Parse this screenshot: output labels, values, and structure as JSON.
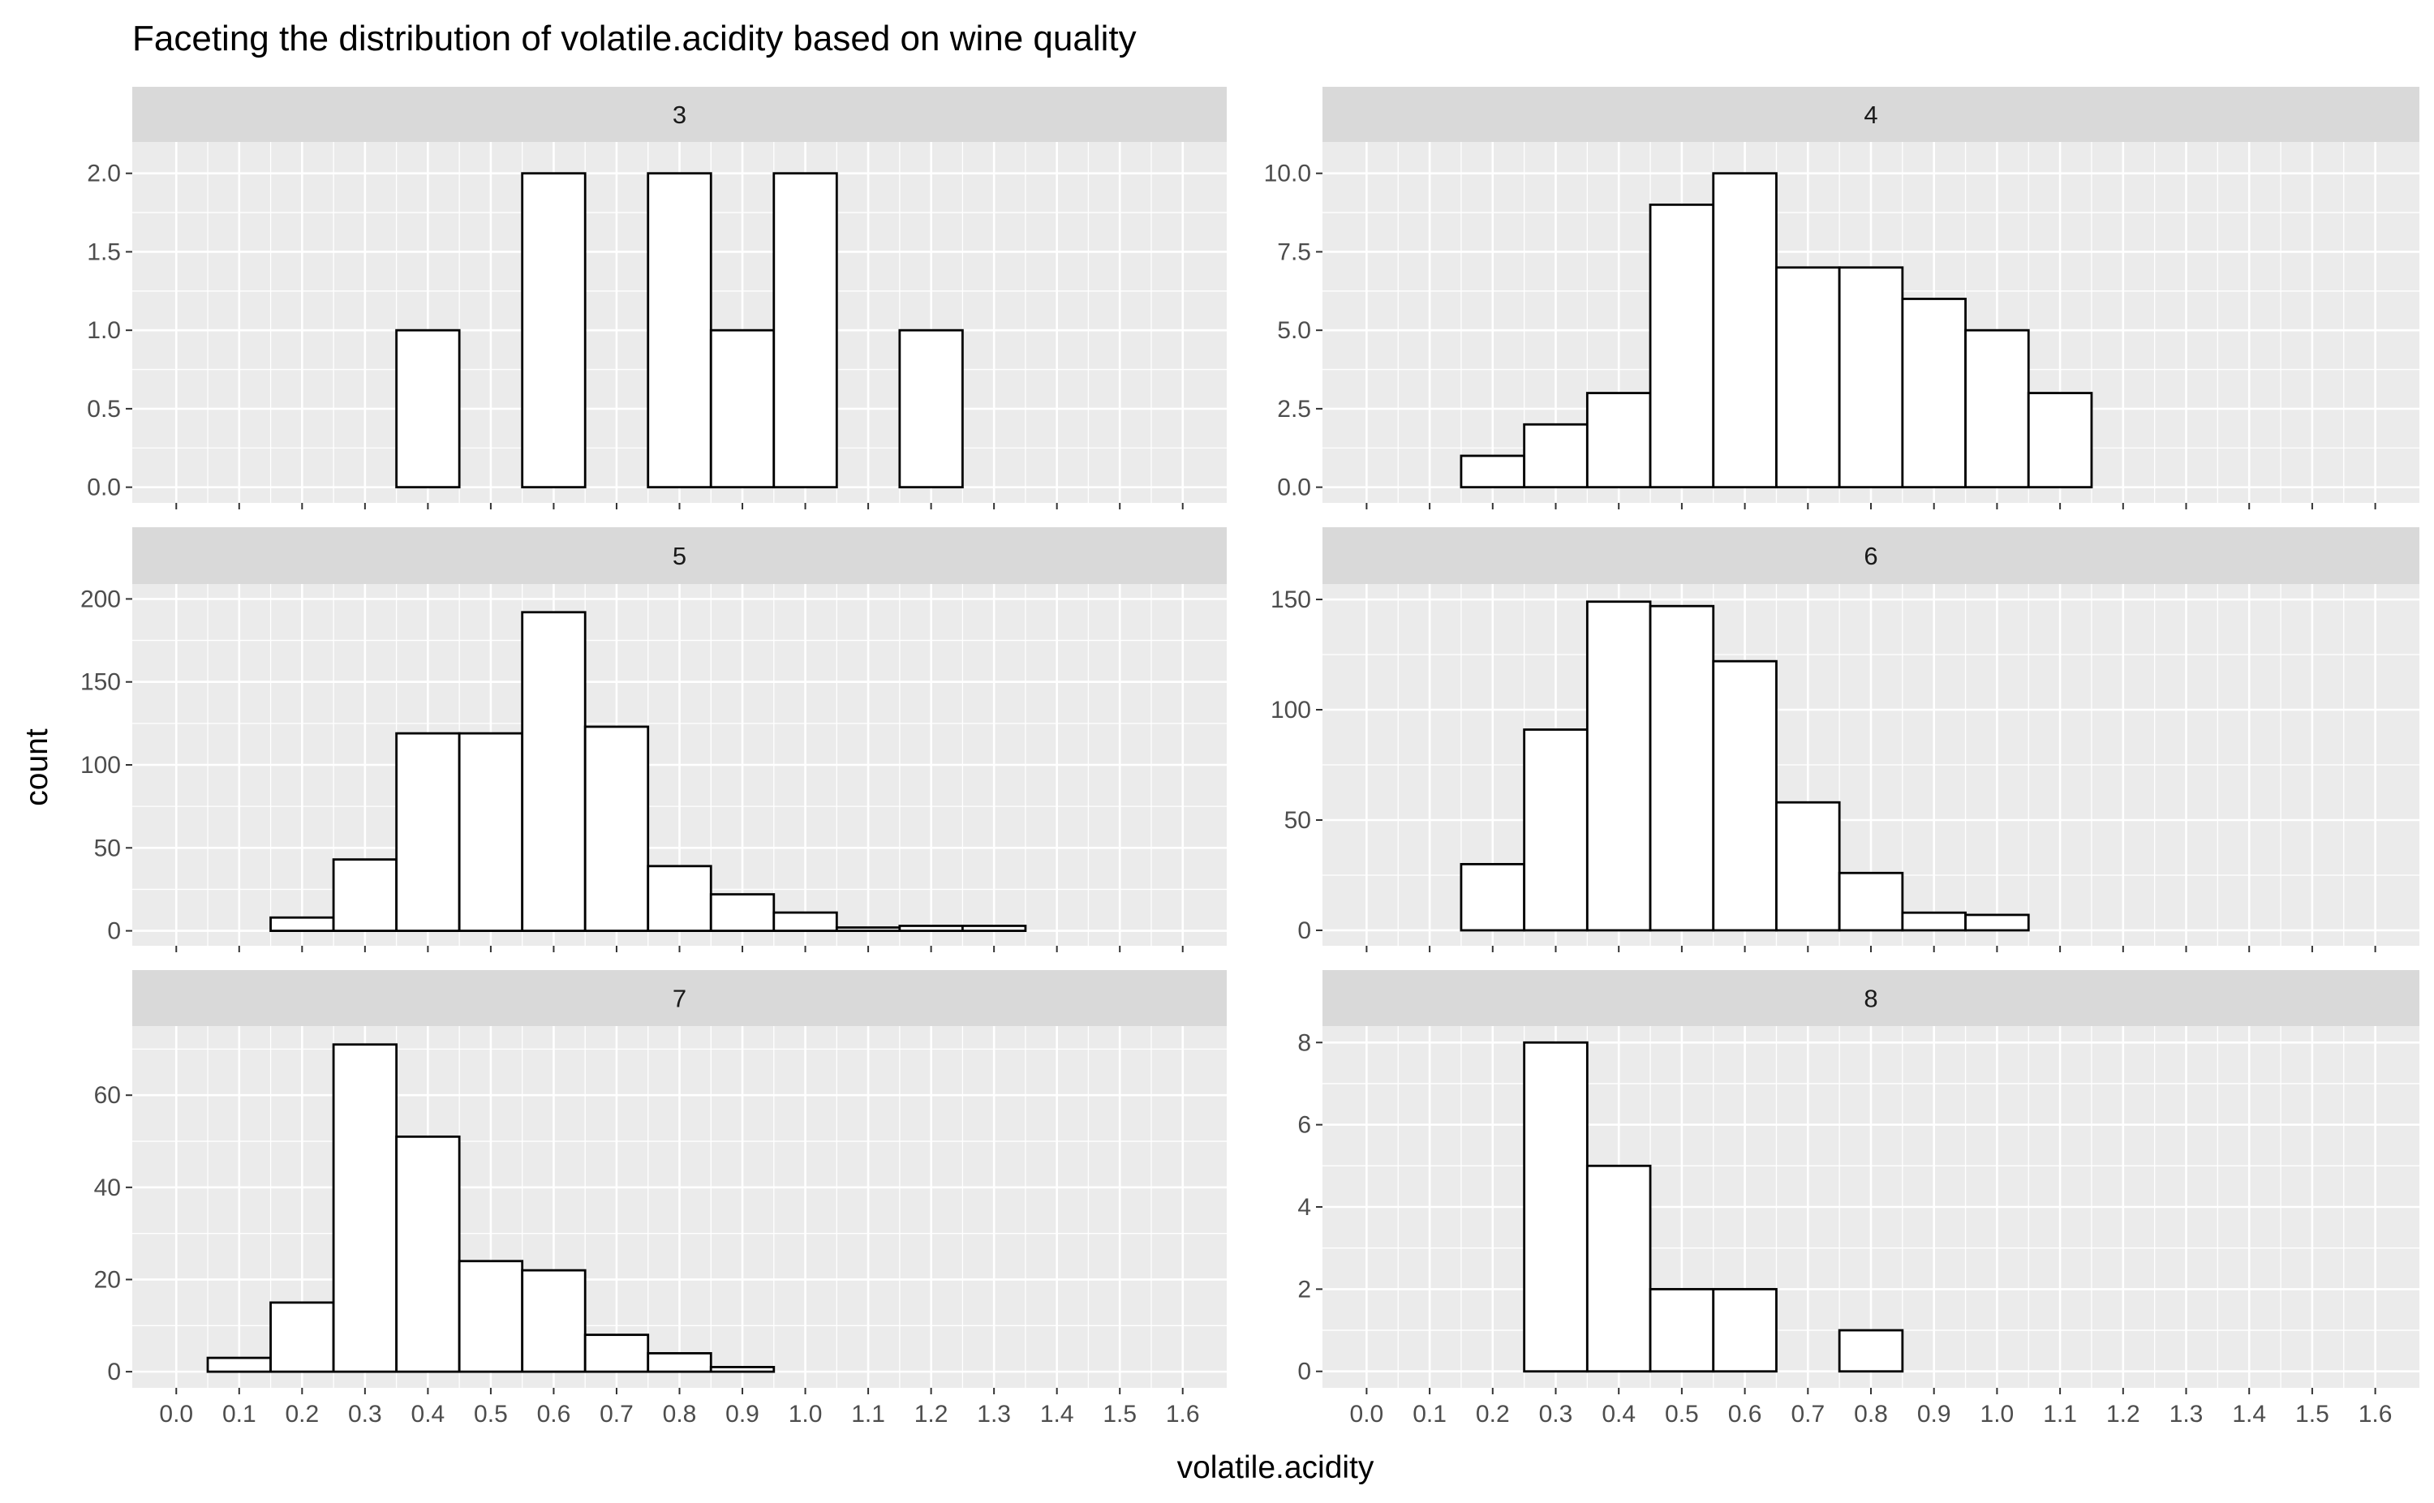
{
  "chart_data": {
    "type": "bar",
    "title": "Faceting the distribution of volatile.acidity based on wine quality",
    "xlabel": "volatile.acidity",
    "ylabel": "count",
    "xlim": [
      -0.07,
      1.67
    ],
    "x_breaks": [
      "0.0",
      "0.1",
      "0.2",
      "0.3",
      "0.4",
      "0.5",
      "0.6",
      "0.7",
      "0.8",
      "0.9",
      "1.0",
      "1.1",
      "1.2",
      "1.3",
      "1.4",
      "1.5",
      "1.6"
    ],
    "bin_width": 0.1,
    "bin_centers": [
      0.1,
      0.2,
      0.3,
      0.4,
      0.5,
      0.6,
      0.7,
      0.8,
      0.9,
      1.0,
      1.1,
      1.2,
      1.3,
      1.4,
      1.5
    ],
    "grid": true,
    "colors": {
      "panel_background": "#ebebeb",
      "grid": "#ffffff",
      "strip_background": "#d9d9d9",
      "bar_fill": "#ffffff",
      "bar_outline": "#000000"
    },
    "facets": [
      {
        "label": "3",
        "ylim": [
          -0.1,
          2.2
        ],
        "y_breaks": [
          "0.0",
          "0.5",
          "1.0",
          "1.5",
          "2.0"
        ],
        "values": [
          0,
          0,
          0,
          1,
          0,
          2,
          0,
          2,
          1,
          2,
          0,
          1,
          0,
          0,
          0
        ]
      },
      {
        "label": "4",
        "ylim": [
          -0.5,
          11
        ],
        "y_breaks": [
          "0.0",
          "2.5",
          "5.0",
          "7.5",
          "10.0"
        ],
        "values": [
          0,
          1,
          2,
          3,
          9,
          10,
          7,
          7,
          6,
          5,
          3,
          0,
          0,
          0,
          0
        ]
      },
      {
        "label": "5",
        "ylim": [
          -9,
          209
        ],
        "y_breaks": [
          "0",
          "50",
          "100",
          "150",
          "200"
        ],
        "values": [
          0,
          8,
          43,
          119,
          119,
          192,
          123,
          39,
          22,
          11,
          2,
          3,
          3,
          0,
          0
        ]
      },
      {
        "label": "6",
        "ylim": [
          -7,
          157
        ],
        "y_breaks": [
          "0",
          "50",
          "100",
          "150"
        ],
        "values": [
          0,
          30,
          91,
          149,
          147,
          122,
          58,
          26,
          8,
          7,
          0,
          0,
          0,
          0,
          0
        ]
      },
      {
        "label": "7",
        "ylim": [
          -3.5,
          75
        ],
        "y_breaks": [
          "0",
          "20",
          "40",
          "60"
        ],
        "values": [
          3,
          15,
          71,
          51,
          24,
          22,
          8,
          4,
          1,
          0,
          0,
          0,
          0,
          0,
          0
        ]
      },
      {
        "label": "8",
        "ylim": [
          -0.4,
          8.4
        ],
        "y_breaks": [
          "0",
          "2",
          "4",
          "6",
          "8"
        ],
        "values": [
          0,
          0,
          8,
          5,
          2,
          2,
          0,
          1,
          0,
          0,
          0,
          0,
          0,
          0,
          0
        ]
      }
    ]
  }
}
